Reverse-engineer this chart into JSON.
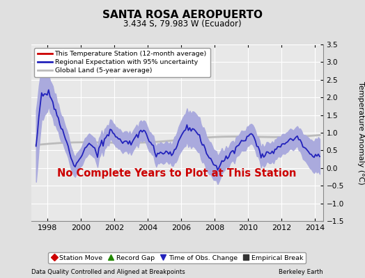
{
  "title": "SANTA ROSA AEROPUERTO",
  "subtitle": "3.434 S, 79.983 W (Ecuador)",
  "ylabel": "Temperature Anomaly (°C)",
  "xlabel_left": "Data Quality Controlled and Aligned at Breakpoints",
  "xlabel_right": "Berkeley Earth",
  "no_data_text": "No Complete Years to Plot at This Station",
  "ylim": [
    -1.5,
    3.5
  ],
  "xlim": [
    1997.0,
    2014.5
  ],
  "yticks": [
    -1.5,
    -1.0,
    -0.5,
    0.0,
    0.5,
    1.0,
    1.5,
    2.0,
    2.5,
    3.0,
    3.5
  ],
  "xticks": [
    1998,
    2000,
    2002,
    2004,
    2006,
    2008,
    2010,
    2012,
    2014
  ],
  "bg_color": "#e0e0e0",
  "plot_bg_color": "#e8e8e8",
  "grid_color": "#ffffff",
  "regional_color": "#2222bb",
  "regional_fill_color": "#aaaadd",
  "global_land_color": "#bbbbbb",
  "station_color": "#cc0000",
  "no_data_color": "#cc0000",
  "legend1_entries": [
    {
      "label": "This Temperature Station (12-month average)",
      "color": "#cc0000",
      "lw": 2
    },
    {
      "label": "Regional Expectation with 95% uncertainty",
      "color": "#2222bb",
      "lw": 2
    },
    {
      "label": "Global Land (5-year average)",
      "color": "#bbbbbb",
      "lw": 2
    }
  ],
  "legend2_entries": [
    {
      "label": "Station Move",
      "marker": "D",
      "color": "#cc0000"
    },
    {
      "label": "Record Gap",
      "marker": "^",
      "color": "#228800"
    },
    {
      "label": "Time of Obs. Change",
      "marker": "v",
      "color": "#2222bb"
    },
    {
      "label": "Empirical Break",
      "marker": "s",
      "color": "#333333"
    }
  ]
}
